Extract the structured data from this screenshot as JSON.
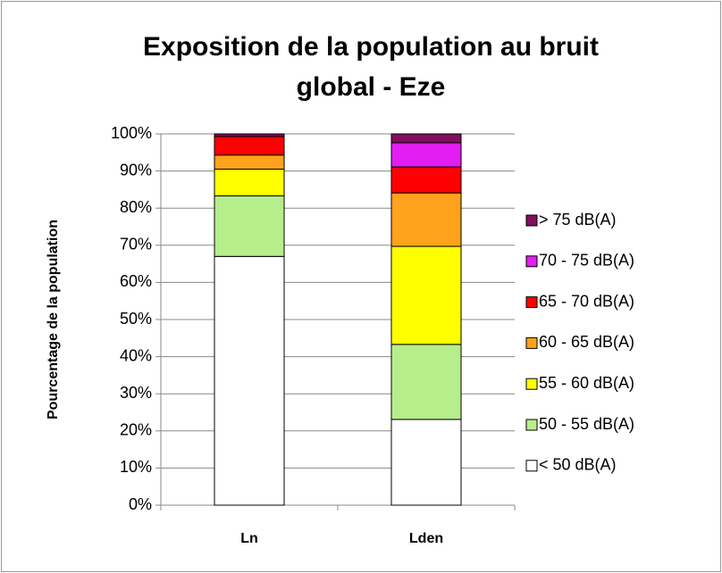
{
  "chart_data": {
    "type": "stacked_bar",
    "title": "Exposition de la population au bruit global - Eze",
    "y_label": "Pourcentage de la population",
    "categories": [
      "Ln",
      "Lden"
    ],
    "series": [
      {
        "name": "< 50 dB(A)",
        "color": "#ffffff",
        "values": [
          67,
          23.1
        ]
      },
      {
        "name": "50 - 55 dB(A)",
        "color": "#b6ee8c",
        "values": [
          16.3,
          20.2
        ]
      },
      {
        "name": "55 - 60 dB(A)",
        "color": "#ffff00",
        "values": [
          7.2,
          26.4
        ]
      },
      {
        "name": "60 - 65 dB(A)",
        "color": "#ffa21c",
        "values": [
          3.8,
          14.4
        ]
      },
      {
        "name": "65 - 70 dB(A)",
        "color": "#ff0000",
        "values": [
          5,
          7
        ]
      },
      {
        "name": "70 - 75 dB(A)",
        "color": "#e21ef0",
        "values": [
          0,
          6.5
        ]
      },
      {
        "name": "> 75 dB(A)",
        "color": "#80105e",
        "values": [
          0.7,
          2.4
        ]
      }
    ],
    "ylim": [
      0,
      100
    ],
    "yticks": [
      {
        "value": 0,
        "label": "0%"
      },
      {
        "value": 10,
        "label": "10%"
      },
      {
        "value": 20,
        "label": "20%"
      },
      {
        "value": 30,
        "label": "30%"
      },
      {
        "value": 40,
        "label": "40%"
      },
      {
        "value": 50,
        "label": "50%"
      },
      {
        "value": 60,
        "label": "60%"
      },
      {
        "value": 70,
        "label": "70%"
      },
      {
        "value": 80,
        "label": "80%"
      },
      {
        "value": 90,
        "label": "90%"
      },
      {
        "value": 100,
        "label": "100%"
      }
    ],
    "grid": true,
    "legend": "right"
  }
}
